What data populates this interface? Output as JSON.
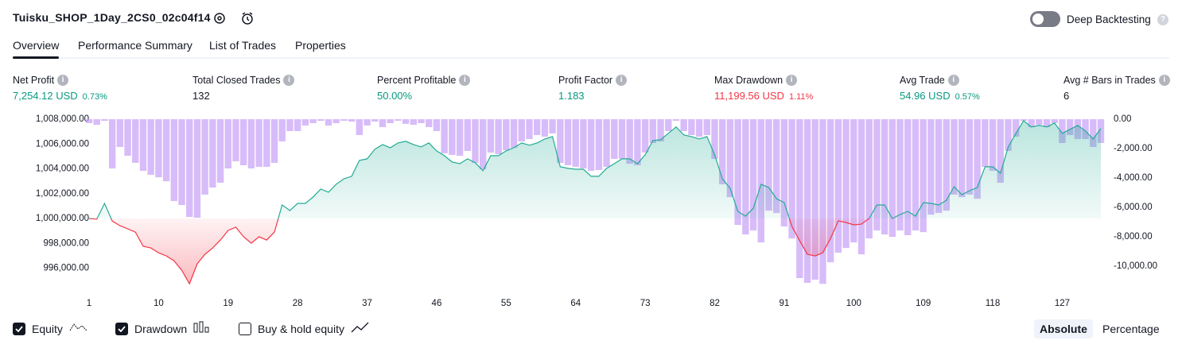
{
  "header": {
    "title": "Tuisku_SHOP_1Day_2CS0_02c04f14",
    "toggle_label": "Deep Backtesting",
    "toggle_on": false
  },
  "tabs": {
    "items": [
      "Overview",
      "Performance Summary",
      "List of Trades",
      "Properties"
    ],
    "active": 0
  },
  "metrics": [
    {
      "label": "Net Profit",
      "value": "7,254.12 USD",
      "percent": "0.73%",
      "color": "#089981"
    },
    {
      "label": "Total Closed Trades",
      "value": "132"
    },
    {
      "label": "Percent Profitable",
      "value": "50.00%",
      "color": "#089981"
    },
    {
      "label": "Profit Factor",
      "value": "1.183",
      "color": "#089981"
    },
    {
      "label": "Max Drawdown",
      "value": "11,199.56 USD",
      "percent": "1.11%",
      "color": "#f23645"
    },
    {
      "label": "Avg Trade",
      "value": "54.96 USD",
      "percent": "0.57%",
      "color": "#089981"
    },
    {
      "label": "Avg # Bars in Trades",
      "value": "6"
    }
  ],
  "chart_data": {
    "type": "line",
    "x": [
      1,
      2,
      3,
      4,
      5,
      6,
      7,
      8,
      9,
      10,
      11,
      12,
      13,
      14,
      15,
      16,
      17,
      18,
      19,
      20,
      21,
      22,
      23,
      24,
      25,
      26,
      27,
      28,
      29,
      30,
      31,
      32,
      33,
      34,
      35,
      36,
      37,
      38,
      39,
      40,
      41,
      42,
      43,
      44,
      45,
      46,
      47,
      48,
      49,
      50,
      51,
      52,
      53,
      54,
      55,
      56,
      57,
      58,
      59,
      60,
      61,
      62,
      63,
      64,
      65,
      66,
      67,
      68,
      69,
      70,
      71,
      72,
      73,
      74,
      75,
      76,
      77,
      78,
      79,
      80,
      81,
      82,
      83,
      84,
      85,
      86,
      87,
      88,
      89,
      90,
      91,
      92,
      93,
      94,
      95,
      96,
      97,
      98,
      99,
      100,
      101,
      102,
      103,
      104,
      105,
      106,
      107,
      108,
      109,
      110,
      111,
      112,
      113,
      114,
      115,
      116,
      117,
      118,
      119,
      120,
      121,
      122,
      123,
      124,
      125,
      126,
      127,
      128,
      129,
      130,
      131,
      132
    ],
    "xlim": [
      1,
      132
    ],
    "xticks": [
      1,
      10,
      19,
      28,
      37,
      46,
      55,
      64,
      73,
      82,
      91,
      100,
      109,
      118,
      127
    ],
    "ylim": [
      994500,
      1008000
    ],
    "yticks": [
      {
        "value": 1008000,
        "label": "1,008,000.00"
      },
      {
        "value": 1006000,
        "label": "1,006,000.00"
      },
      {
        "value": 1004000,
        "label": "1,004,000.00"
      },
      {
        "value": 1002000,
        "label": "1,002,000.00"
      },
      {
        "value": 1000000,
        "label": "1,000,000.00"
      },
      {
        "value": 998000,
        "label": "998,000.00"
      },
      {
        "value": 996000,
        "label": "996,000.00"
      }
    ],
    "y2lim": [
      -11400,
      0
    ],
    "y2ticks": [
      {
        "value": 0,
        "label": "0.00"
      },
      {
        "value": -2000,
        "label": "-2,000.00"
      },
      {
        "value": -4000,
        "label": "-4,000.00"
      },
      {
        "value": -6000,
        "label": "-6,000.00"
      },
      {
        "value": -8000,
        "label": "-8,000.00"
      },
      {
        "value": -10000,
        "label": "-10,000.00"
      }
    ],
    "series": [
      {
        "name": "Equity",
        "type": "line",
        "color": "#22ab94",
        "negative_color": "#f23645",
        "visible": true,
        "values": [
          1000000,
          999950,
          1001220,
          999800,
          999420,
          999170,
          998900,
          997760,
          997630,
          997240,
          996990,
          996600,
          995830,
          994740,
          996350,
          997120,
          997630,
          998270,
          999040,
          999300,
          998530,
          998010,
          998530,
          998270,
          998910,
          1001090,
          1000640,
          1001220,
          1001220,
          1001730,
          1002370,
          1002120,
          1002760,
          1003200,
          1003400,
          1004680,
          1004810,
          1005580,
          1005960,
          1005700,
          1006090,
          1006220,
          1005960,
          1005770,
          1006090,
          1005450,
          1005060,
          1004550,
          1004420,
          1004810,
          1004490,
          1003850,
          1005060,
          1005060,
          1005450,
          1005700,
          1006090,
          1005900,
          1006090,
          1006410,
          1006600,
          1004170,
          1004040,
          1003970,
          1003970,
          1003400,
          1003400,
          1004040,
          1004420,
          1004810,
          1004810,
          1004420,
          1005130,
          1006280,
          1006350,
          1006860,
          1007370,
          1006730,
          1006600,
          1006410,
          1006600,
          1005130,
          1003200,
          1002440,
          1000580,
          1000190,
          1000830,
          1002760,
          1002500,
          1001600,
          1001280,
          999360,
          998210,
          997120,
          996990,
          997240,
          998400,
          999810,
          999680,
          999490,
          999550,
          1000000,
          1001090,
          1001090,
          1000000,
          1000320,
          1000580,
          1000190,
          1001280,
          1001220,
          1001090,
          1001470,
          1002560,
          1001920,
          1002240,
          1002500,
          1004170,
          1004170,
          1003650,
          1005770,
          1006860,
          1007880,
          1007370,
          1007500,
          1007370,
          1007690,
          1006860,
          1007180,
          1007500,
          1007050,
          1006410,
          1007254.12
        ]
      },
      {
        "name": "Drawdown",
        "type": "bar",
        "axis": "y2",
        "color": "#c9a6f7",
        "visible": true,
        "values": [
          -270,
          -380,
          -110,
          -3350,
          -1890,
          -2490,
          -2970,
          -3510,
          -3780,
          -3950,
          -4220,
          -5570,
          -5840,
          -6650,
          -6700,
          -5130,
          -4650,
          -4320,
          -3350,
          -2860,
          -3130,
          -3350,
          -3240,
          -3240,
          -2970,
          -1510,
          -810,
          -810,
          -430,
          -270,
          -110,
          -430,
          -270,
          -110,
          -160,
          -1080,
          -430,
          -160,
          -540,
          -270,
          -110,
          -320,
          -380,
          -270,
          -540,
          -810,
          -2320,
          -2430,
          -2490,
          -2160,
          -2970,
          -3400,
          -2270,
          -2380,
          -2110,
          -1950,
          -1510,
          -1350,
          -1080,
          -1190,
          -970,
          -2970,
          -3130,
          -3240,
          -3350,
          -3510,
          -3460,
          -3240,
          -2700,
          -2700,
          -3030,
          -3130,
          -2270,
          -1620,
          -1510,
          -810,
          -110,
          -810,
          -1080,
          -1190,
          -1080,
          -2700,
          -4430,
          -5300,
          -7190,
          -7840,
          -7570,
          -8380,
          -6220,
          -6380,
          -7300,
          -8110,
          -10810,
          -11130,
          -10920,
          -11199.56,
          -9730,
          -9080,
          -8760,
          -8380,
          -9190,
          -8110,
          -7570,
          -7840,
          -8000,
          -7570,
          -7890,
          -7570,
          -7680,
          -6490,
          -6380,
          -6220,
          -5130,
          -5300,
          -5130,
          -5410,
          -3240,
          -3510,
          -4320,
          -2160,
          -1190,
          -110,
          -540,
          -380,
          -540,
          -270,
          -1620,
          -1080,
          -1350,
          -1350,
          -1890,
          -1620
        ]
      }
    ],
    "buy_hold_label": "Buy & hold equity",
    "buy_hold_visible": false
  },
  "modes": {
    "items": [
      "Absolute",
      "Percentage"
    ],
    "active": 0
  }
}
